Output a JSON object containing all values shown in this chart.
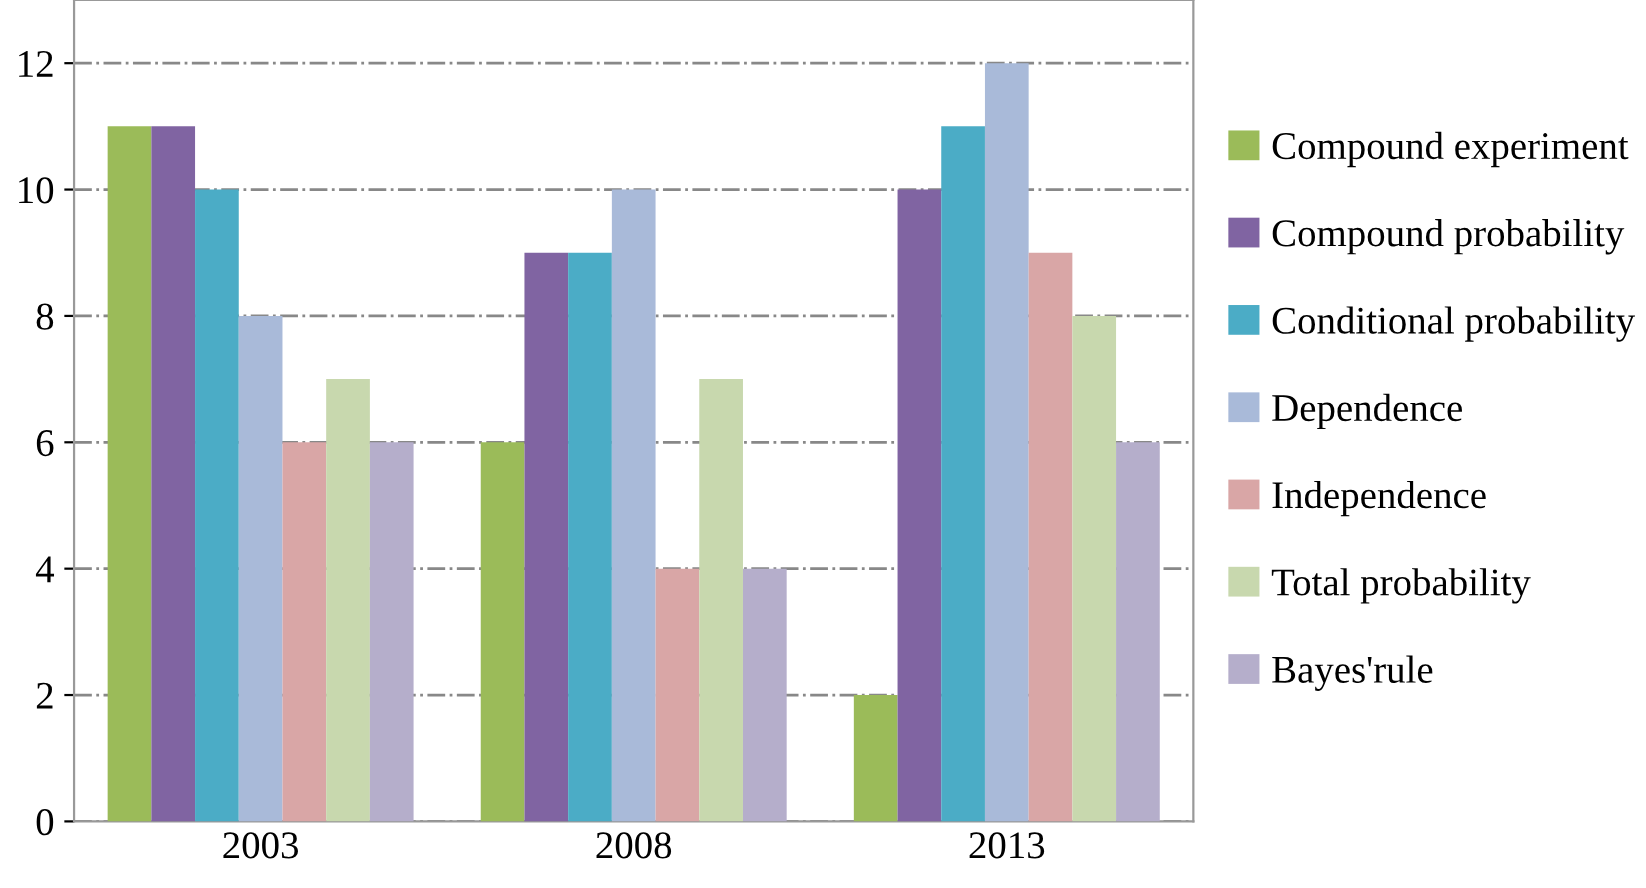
{
  "chart_data": {
    "type": "bar",
    "categories": [
      "2003",
      "2008",
      "2013"
    ],
    "series": [
      {
        "name": "Compound experiment",
        "color": "#9bbb59",
        "values": [
          11,
          6,
          2
        ]
      },
      {
        "name": "Compound probability",
        "color": "#8064a2",
        "values": [
          11,
          9,
          10
        ]
      },
      {
        "name": "Conditional probability",
        "color": "#4bacc6",
        "values": [
          10,
          9,
          11
        ]
      },
      {
        "name": "Dependence",
        "color": "#a9bad9",
        "values": [
          8,
          10,
          12
        ]
      },
      {
        "name": "Independence",
        "color": "#d9a6a6",
        "values": [
          6,
          4,
          9
        ]
      },
      {
        "name": "Total probability",
        "color": "#c8d8ae",
        "values": [
          7,
          7,
          8
        ]
      },
      {
        "name": "Bayes'rule",
        "color": "#b5aecb",
        "values": [
          6,
          4,
          6
        ]
      }
    ],
    "ylim": [
      0,
      13
    ],
    "yticks": [
      0,
      2,
      4,
      6,
      8,
      10,
      12
    ],
    "grid": "y",
    "legend": "right",
    "line_style": "dashdot"
  }
}
